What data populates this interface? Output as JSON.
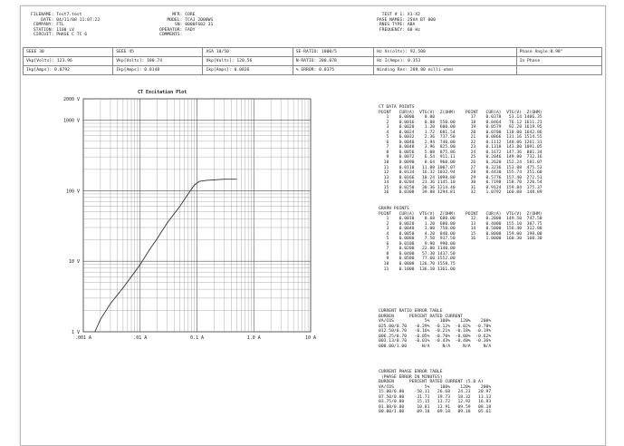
{
  "header": {
    "left": [
      {
        "k": "FILENAME:",
        "v": "Test7.test"
      },
      {
        "k": "DATE:",
        "v": "04/11/08 11:07:22"
      },
      {
        "k": "COMPANY:",
        "v": "FTL"
      },
      {
        "k": "STATION:",
        "v": "1100 LV"
      },
      {
        "k": "CIRCUIT:",
        "v": "PHASE C TC 6"
      }
    ],
    "mid": [
      {
        "k": "MFR:",
        "v": "CORE"
      },
      {
        "k": "MODEL:",
        "v": "TCAJ 2000WS"
      },
      {
        "k": "SN:",
        "v": "0000F602 31"
      },
      {
        "k": "OPERATOR:",
        "v": "FADY"
      },
      {
        "k": "COMMENTS:",
        "v": ""
      }
    ],
    "right": [
      {
        "k": "TEST # 1:",
        "v": "X1-X2"
      },
      {
        "k": "PASE NAMES:",
        "v": "2SVA BT 000"
      },
      {
        "k": "RNES TYPE:",
        "v": "ABA"
      },
      {
        "k": "FREQUENCY:",
        "v": "60 Hz"
      }
    ]
  },
  "cells": [
    [
      "SEEE 30",
      "SEEE 45",
      "ASA 10/50",
      "SE-RATIO: 1000/5",
      "Hz Vs(olts): 92.500",
      "Phase Angle:0.98°"
    ],
    [
      "Vkp[Volts]: 123.96",
      "Vkp[Volts]: 100.74",
      "Vkp[Volts]: 120.56",
      "N-RATIO: 200.078",
      "Hz I(Amps): 0.353",
      "In Phase"
    ],
    [
      "Ikp[Amps]: 0.0792",
      "Ikp[Amps]: 0.0148",
      "Ikp[Amps]: 0.0836",
      "% ERROR: 0.0375",
      "Winding Res: 289.80 milli-ohms",
      ""
    ]
  ],
  "chart_data": {
    "type": "line",
    "title": "CT Excitation Plot",
    "xlabel": "",
    "ylabel": "",
    "xscale": "log",
    "yscale": "log",
    "xlim": [
      0.001,
      10
    ],
    "ylim": [
      1,
      2000
    ],
    "x_tick_labels": [
      ".001 A",
      ".01 A",
      "0.1 A",
      "1.0 A",
      "10 A"
    ],
    "y_tick_labels": [
      "2000 V",
      "1000 V",
      "100 V",
      "10 V",
      "1 V"
    ],
    "y_tick_values": [
      2000,
      1000,
      100,
      10,
      1
    ],
    "grid": true,
    "series": [
      {
        "x": [
          0.0016,
          0.002,
          0.003,
          0.005,
          0.008,
          0.01,
          0.015,
          0.02,
          0.03,
          0.05,
          0.07,
          0.09,
          0.11,
          0.15,
          0.3,
          0.5
        ],
        "y": [
          1,
          1.5,
          2.5,
          4.2,
          7,
          9,
          15,
          21,
          35,
          60,
          90,
          120,
          135,
          140,
          145,
          145
        ]
      }
    ]
  },
  "ct_data": {
    "title": "CT DATA POINTS",
    "headers": [
      "POINT",
      "CUR(A)",
      "VTG(V)",
      "Z(OHM)",
      "POINT",
      "CUR(A)",
      "VTG(V)",
      "Z(OHM)"
    ],
    "rows": [
      [
        "1",
        "0.0000",
        "0.00",
        "",
        "17",
        "0.0378",
        "53.14",
        "1406.35"
      ],
      [
        "2",
        "0.0016",
        "0.88",
        "550.00",
        "18",
        "0.0464",
        "76.12",
        "1611.21"
      ],
      [
        "3",
        "0.0020",
        "1.20",
        "600.00",
        "19",
        "0.0579",
        "92.28",
        "1619.95"
      ],
      [
        "4",
        "0.0024",
        "1.72",
        "681.54",
        "20",
        "0.0700",
        "110.00",
        "1642.86"
      ],
      [
        "5",
        "0.0032",
        "2.36",
        "737.50",
        "21",
        "0.0866",
        "131.16",
        "1514.55"
      ],
      [
        "6",
        "0.0040",
        "2.94",
        "740.00",
        "22",
        "0.1112",
        "140.06",
        "1261.31"
      ],
      [
        "7",
        "0.0048",
        "3.96",
        "825.00",
        "23",
        "0.1318",
        "143.80",
        "1091.05"
      ],
      [
        "8",
        "0.0056",
        "5.08",
        "875.86",
        "24",
        "0.1672",
        "147.36",
        "881.34"
      ],
      [
        "9",
        "0.0072",
        "6.54",
        "911.11",
        "25",
        "0.2046",
        "149.80",
        "732.16"
      ],
      [
        "10",
        "0.0090",
        "8.64",
        "960.00",
        "26",
        "0.2620",
        "152.24",
        "581.07"
      ],
      [
        "11",
        "0.0110",
        "11.88",
        "1007.07",
        "27",
        "0.3236",
        "153.88",
        "475.53"
      ],
      [
        "12",
        "0.0134",
        "16.32",
        "1032.94",
        "28",
        "0.4430",
        "155.74",
        "351.60"
      ],
      [
        "13",
        "0.0166",
        "18.24",
        "1098.80",
        "29",
        "0.5776",
        "157.40",
        "272.51"
      ],
      [
        "14",
        "0.0204",
        "23.36",
        "1145.10",
        "30",
        "0.7198",
        "158.70",
        "220.54"
      ],
      [
        "15",
        "0.0250",
        "30.36",
        "1214.40",
        "31",
        "0.9124",
        "159.84",
        "175.37"
      ],
      [
        "16",
        "0.0308",
        "39.88",
        "1294.81",
        "32",
        "1.0792",
        "160.08",
        "148.89"
      ]
    ]
  },
  "graph_points": {
    "title": "GRAPH POINTS",
    "headers": [
      "POINT",
      "CUR(A)",
      "VTG(V)",
      "Z(OHM)",
      "POINT",
      "CUR(A)",
      "VTG(V)",
      "Z(OHM)"
    ],
    "rows": [
      [
        "1",
        "0.0010",
        "0.68",
        "680.00",
        "12",
        "0.2000",
        "149.50",
        "747.50"
      ],
      [
        "2",
        "0.0020",
        "1.20",
        "600.00",
        "13",
        "0.4000",
        "155.10",
        "387.75"
      ],
      [
        "3",
        "0.0040",
        "3.00",
        "750.00",
        "14",
        "0.5000",
        "156.40",
        "312.80"
      ],
      [
        "4",
        "0.0050",
        "4.20",
        "840.00",
        "15",
        "0.8000",
        "159.00",
        "198.00"
      ],
      [
        "5",
        "0.0080",
        "7.50",
        "937.50",
        "16",
        "1.0000",
        "160.30",
        "160.30"
      ],
      [
        "6",
        "0.0100",
        "9.90",
        "990.00",
        "",
        "",
        "",
        ""
      ],
      [
        "7",
        "0.0200",
        "22.80",
        "1140.00",
        "",
        "",
        "",
        ""
      ],
      [
        "8",
        "0.0400",
        "57.30",
        "1437.50",
        "",
        "",
        "",
        ""
      ],
      [
        "9",
        "0.0500",
        "77.60",
        "1552.00",
        "",
        "",
        "",
        ""
      ],
      [
        "10",
        "0.0800",
        "126.70",
        "1558.75",
        "",
        "",
        "",
        ""
      ],
      [
        "11",
        "0.1000",
        "136.10",
        "1361.00",
        "",
        "",
        "",
        ""
      ]
    ]
  },
  "ratio_error": {
    "title": "CURRENT RATIO ERROR TABLE",
    "headers": [
      "BURDEN",
      "PERCENT RATED CURRENT"
    ],
    "subheaders": [
      "VA/COS",
      "5%",
      "100%",
      "120%",
      "200%"
    ],
    "rows": [
      [
        "025.00/0.70",
        "-0.29%",
        "-0.12%",
        "-0.02%",
        "-0.78%"
      ],
      [
        "012.50/0.70",
        "-0.16%",
        "-0.21%",
        "-0.18%",
        "-0.19%"
      ],
      [
        "006.25/0.70",
        "-0.05%",
        "-0.70%",
        "-0.08%",
        "-0.62%"
      ],
      [
        "003.13/0.70",
        "-0.01%",
        "-0.43%",
        "-0.40%",
        "-0.36%"
      ],
      [
        "000.00/1.00",
        "N/A",
        "N/A",
        "N/A",
        "N/A"
      ]
    ]
  },
  "phase_error": {
    "title": "CURRENT PHASE ERROR TABLE",
    "subtitle": "(PHASE ERROR IN MINUTES)",
    "headers": [
      "BURDEN",
      "PERCENT RATED CURRENT (5.0 A)"
    ],
    "subheaders": [
      "VA/COS",
      "5%",
      "100%",
      "120%",
      "200%"
    ],
    "rows": [
      [
        "15.00/0.80",
        "-50.11",
        "26.68",
        "24.23",
        "20.97"
      ],
      [
        "07.50/0.80",
        "-31.71",
        "19.73",
        "18.32",
        "13.13"
      ],
      [
        "03.75/0.80",
        "15.15",
        "13.72",
        "12.92",
        "16.93"
      ],
      [
        "01.88/0.80",
        "10.81",
        "13.91",
        "09.59",
        "08.18"
      ],
      [
        "00.00/1.00",
        "09.18",
        "09.18",
        "09.18",
        "05.61"
      ]
    ]
  }
}
